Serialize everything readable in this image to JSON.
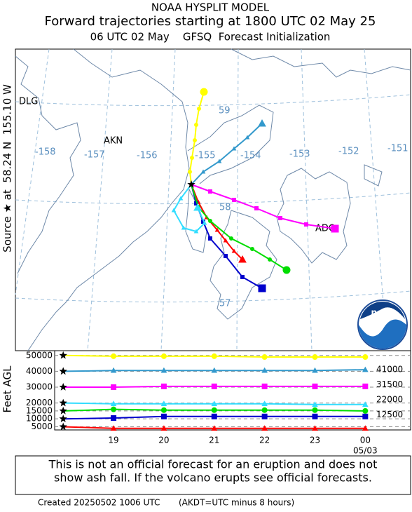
{
  "header": {
    "title": "NOAA HYSPLIT MODEL",
    "subtitle": "Forward trajectories starting at 1800 UTC 02 May 25",
    "info": "06 UTC 02 May    GFSQ  Forecast Initialization"
  },
  "source_label": "Source ★ at  58.24 N  155.10 W",
  "map": {
    "places": [
      "DLG",
      "AKN",
      "ADQ"
    ],
    "longitudes": [
      "-158",
      "-157",
      "-156",
      "-155",
      "-154",
      "-153",
      "-152",
      "-151"
    ],
    "latitudes": [
      "59",
      "58",
      "57"
    ],
    "logo": "noaa"
  },
  "chart_data": {
    "type": "line",
    "y_axis_label": "Feet AGL",
    "x_annotation": "05/03",
    "x": [
      18,
      19,
      20,
      21,
      22,
      23,
      24
    ],
    "xlim": [
      17.83,
      24.9
    ],
    "xticks": [
      19,
      20,
      21,
      22,
      23,
      {
        "value": 24,
        "label": "00"
      }
    ],
    "ylim": [
      3000,
      53000
    ],
    "yticks": [
      5000,
      10000,
      15000,
      20000,
      30000,
      40000,
      50000
    ],
    "y2lim": [
      3000,
      53000
    ],
    "y2ticks": [
      12500,
      22000,
      31500,
      41000
    ],
    "grid": true,
    "series": [
      {
        "color": "#ff0000",
        "marker": "triangle",
        "values": [
          5000,
          4000,
          4000,
          4000,
          4000,
          4000,
          4000
        ]
      },
      {
        "color": "#0000cc",
        "marker": "square",
        "values": [
          10000,
          10500,
          11500,
          11500,
          11500,
          11500,
          11500
        ]
      },
      {
        "color": "#00dd00",
        "marker": "circle",
        "values": [
          15000,
          16000,
          15500,
          15500,
          15500,
          15500,
          15000
        ]
      },
      {
        "color": "#33ddff",
        "marker": "triangle",
        "values": [
          20000,
          19500,
          19500,
          19500,
          19500,
          19000,
          19000
        ]
      },
      {
        "color": "#ff00ff",
        "marker": "square",
        "values": [
          30000,
          30000,
          30500,
          30500,
          30500,
          30500,
          30500
        ]
      },
      {
        "color": "#3399cc",
        "marker": "triangle",
        "values": [
          40000,
          40500,
          40500,
          40500,
          40500,
          40500,
          41000
        ]
      },
      {
        "color": "#ffff00",
        "marker": "circle",
        "values": [
          50000,
          49500,
          49500,
          49500,
          49000,
          49000,
          49000
        ]
      }
    ]
  },
  "footer": {
    "disclaimer": [
      "This is not an official forecast for an eruption and does not",
      "show ash fall. If the volcano erupts see official forecasts."
    ],
    "created": "Created 20250502 1006 UTC",
    "note": "(AKDT=UTC minus 8 hours)"
  }
}
